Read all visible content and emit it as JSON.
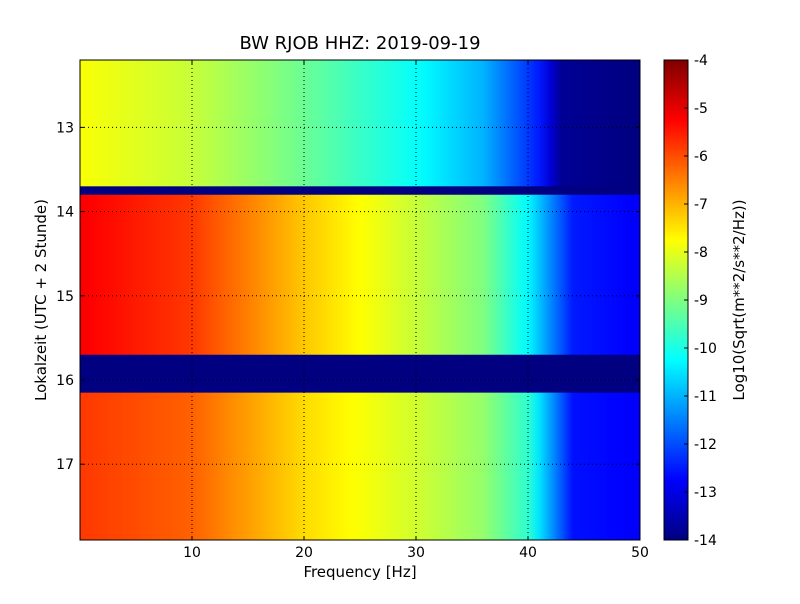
{
  "chart_data": {
    "type": "heatmap",
    "title": "BW RJOB HHZ: 2019-09-19",
    "xlabel": "Frequency [Hz]",
    "ylabel": "Lokalzeit (UTC + 2 Stunde)",
    "xlim": [
      0,
      50
    ],
    "ylim": [
      12.2,
      17.9
    ],
    "y_inverted": true,
    "x_ticks": [
      "10",
      "20",
      "30",
      "40",
      "50"
    ],
    "x_tick_values": [
      10,
      20,
      30,
      40,
      50
    ],
    "y_ticks": [
      "13",
      "14",
      "15",
      "16",
      "17"
    ],
    "y_tick_values": [
      13,
      14,
      15,
      16,
      17
    ],
    "grid": true,
    "colormap": "jet",
    "colorbar": {
      "label": "Log10(Sqrt(m**2/s**2/Hz))",
      "min": -14,
      "max": -4,
      "ticks": [
        "-4",
        "-5",
        "-6",
        "-7",
        "-8",
        "-9",
        "-10",
        "-11",
        "-12",
        "-13",
        "-14"
      ],
      "tick_values": [
        -4,
        -5,
        -6,
        -7,
        -8,
        -9,
        -10,
        -11,
        -12,
        -13,
        -14
      ]
    },
    "segments": [
      {
        "time_range": [
          12.2,
          13.7
        ],
        "profile": [
          [
            0,
            -7.8
          ],
          [
            10,
            -8.3
          ],
          [
            20,
            -9.2
          ],
          [
            30,
            -10.2
          ],
          [
            36,
            -11.0
          ],
          [
            41,
            -12.5
          ],
          [
            43,
            -13.8
          ],
          [
            50,
            -14.0
          ]
        ]
      },
      {
        "time_range": [
          13.8,
          15.7
        ],
        "profile": [
          [
            0,
            -5.2
          ],
          [
            10,
            -5.8
          ],
          [
            20,
            -7.2
          ],
          [
            30,
            -8.3
          ],
          [
            36,
            -9.0
          ],
          [
            40,
            -10.3
          ],
          [
            44,
            -12.5
          ],
          [
            50,
            -12.8
          ]
        ]
      },
      {
        "time_range": [
          16.15,
          17.9
        ],
        "profile": [
          [
            0,
            -5.8
          ],
          [
            10,
            -6.2
          ],
          [
            20,
            -7.4
          ],
          [
            30,
            -8.2
          ],
          [
            36,
            -8.8
          ],
          [
            40,
            -9.8
          ],
          [
            44,
            -12.6
          ],
          [
            50,
            -12.8
          ]
        ]
      }
    ],
    "gaps": [
      [
        13.7,
        13.8
      ],
      [
        15.7,
        16.15
      ]
    ]
  }
}
